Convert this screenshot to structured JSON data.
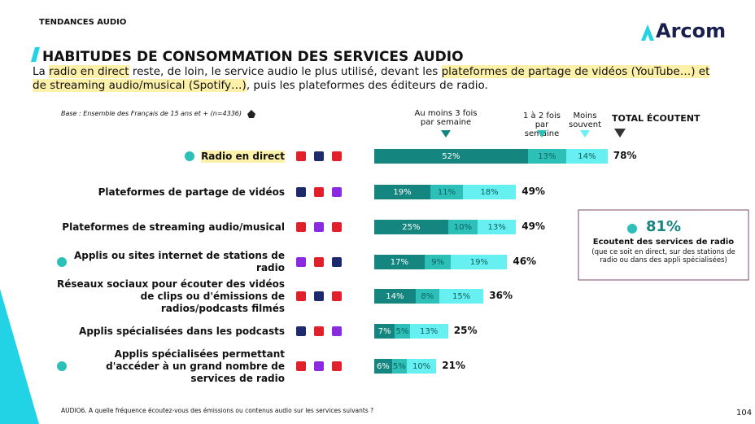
{
  "header": "TENDANCES AUDIO",
  "logo": "Arcom",
  "chart_data": {
    "type": "bar",
    "orientation": "horizontal",
    "stacked": true,
    "title": "HABITUDES DE CONSOMMATION DES SERVICES AUDIO",
    "subtitle": [
      "La ",
      "radio en direct",
      " reste, de loin, le service audio le plus utilisé, devant les ",
      "plateformes de partage de vidéos (YouTube…) et de streaming audio/musical (Spotify…)",
      ", puis les plateformes des éditeurs de radio."
    ],
    "base_note": "Base : Ensemble des Français de 15 ans et + (n=4336)",
    "categories": [
      "Radio en direct",
      "Plateformes de partage de vidéos",
      "Plateformes de streaming audio/musical",
      "Applis ou sites internet de stations de radio",
      "Réseaux sociaux pour écouter des vidéos de clips ou d'émissions de radios/podcasts filmés",
      "Applis spécialisées dans les podcasts",
      "Applis spécialisées permettant d'accéder à un grand nombre de services de radio"
    ],
    "series": [
      {
        "name": "Au moins 3 fois par semaine",
        "color": "#14857f",
        "values": [
          52,
          19,
          25,
          17,
          14,
          7,
          6
        ],
        "value_labels": [
          "52%",
          "19%",
          "25%",
          "17%",
          "14%",
          "7%",
          "6%"
        ]
      },
      {
        "name": "1 à 2 fois par semaine",
        "color": "#2cc0b8",
        "values": [
          13,
          11,
          10,
          9,
          8,
          5,
          5
        ],
        "value_labels": [
          "13%",
          "11%",
          "10%",
          "9%",
          "8%",
          "5%",
          "5%"
        ]
      },
      {
        "name": "Moins souvent",
        "color": "#66f0f2",
        "values": [
          14,
          18,
          13,
          19,
          15,
          13,
          10
        ],
        "value_labels": [
          "14%",
          "18%",
          "13%",
          "19%",
          "15%",
          "13%",
          "10%"
        ]
      }
    ],
    "totals": {
      "name": "TOTAL ÉCOUTENT",
      "values": [
        78,
        49,
        49,
        46,
        36,
        25,
        21
      ],
      "value_labels": [
        "78%",
        "49%",
        "49%",
        "46%",
        "36%",
        "25%",
        "21%"
      ]
    }
  },
  "callout": {
    "value": 81,
    "value_label": "81%",
    "title": "Ecoutent des services de radio",
    "note": "(que ce soit en direct, sur des stations de radio ou dans des appli spécialisées)"
  },
  "footnote": "AUDIO6. A quelle fréquence écoutez-vous des émissions ou contenus audio sur les services suivants ?",
  "page_number": "104"
}
